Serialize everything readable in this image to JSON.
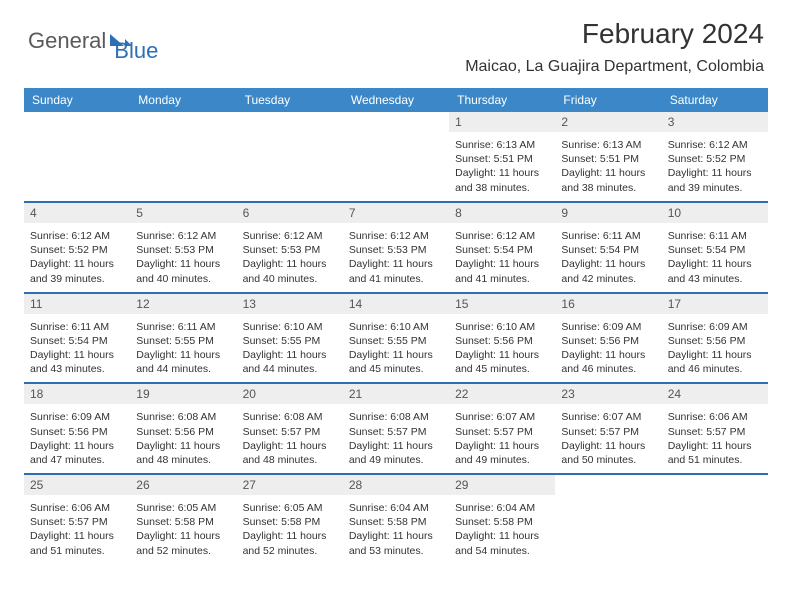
{
  "logo": {
    "general": "General",
    "blue": "Blue"
  },
  "title": "February 2024",
  "location": "Maicao, La Guajira Department, Colombia",
  "columns": [
    "Sunday",
    "Monday",
    "Tuesday",
    "Wednesday",
    "Thursday",
    "Friday",
    "Saturday"
  ],
  "colors": {
    "header_bg": "#3b87c8",
    "border": "#2d6fb5",
    "daynum_bg": "#eeeeee"
  },
  "weeks": [
    [
      null,
      null,
      null,
      null,
      {
        "d": "1",
        "sr": "Sunrise: 6:13 AM",
        "ss": "Sunset: 5:51 PM",
        "dl1": "Daylight: 11 hours",
        "dl2": "and 38 minutes."
      },
      {
        "d": "2",
        "sr": "Sunrise: 6:13 AM",
        "ss": "Sunset: 5:51 PM",
        "dl1": "Daylight: 11 hours",
        "dl2": "and 38 minutes."
      },
      {
        "d": "3",
        "sr": "Sunrise: 6:12 AM",
        "ss": "Sunset: 5:52 PM",
        "dl1": "Daylight: 11 hours",
        "dl2": "and 39 minutes."
      }
    ],
    [
      {
        "d": "4",
        "sr": "Sunrise: 6:12 AM",
        "ss": "Sunset: 5:52 PM",
        "dl1": "Daylight: 11 hours",
        "dl2": "and 39 minutes."
      },
      {
        "d": "5",
        "sr": "Sunrise: 6:12 AM",
        "ss": "Sunset: 5:53 PM",
        "dl1": "Daylight: 11 hours",
        "dl2": "and 40 minutes."
      },
      {
        "d": "6",
        "sr": "Sunrise: 6:12 AM",
        "ss": "Sunset: 5:53 PM",
        "dl1": "Daylight: 11 hours",
        "dl2": "and 40 minutes."
      },
      {
        "d": "7",
        "sr": "Sunrise: 6:12 AM",
        "ss": "Sunset: 5:53 PM",
        "dl1": "Daylight: 11 hours",
        "dl2": "and 41 minutes."
      },
      {
        "d": "8",
        "sr": "Sunrise: 6:12 AM",
        "ss": "Sunset: 5:54 PM",
        "dl1": "Daylight: 11 hours",
        "dl2": "and 41 minutes."
      },
      {
        "d": "9",
        "sr": "Sunrise: 6:11 AM",
        "ss": "Sunset: 5:54 PM",
        "dl1": "Daylight: 11 hours",
        "dl2": "and 42 minutes."
      },
      {
        "d": "10",
        "sr": "Sunrise: 6:11 AM",
        "ss": "Sunset: 5:54 PM",
        "dl1": "Daylight: 11 hours",
        "dl2": "and 43 minutes."
      }
    ],
    [
      {
        "d": "11",
        "sr": "Sunrise: 6:11 AM",
        "ss": "Sunset: 5:54 PM",
        "dl1": "Daylight: 11 hours",
        "dl2": "and 43 minutes."
      },
      {
        "d": "12",
        "sr": "Sunrise: 6:11 AM",
        "ss": "Sunset: 5:55 PM",
        "dl1": "Daylight: 11 hours",
        "dl2": "and 44 minutes."
      },
      {
        "d": "13",
        "sr": "Sunrise: 6:10 AM",
        "ss": "Sunset: 5:55 PM",
        "dl1": "Daylight: 11 hours",
        "dl2": "and 44 minutes."
      },
      {
        "d": "14",
        "sr": "Sunrise: 6:10 AM",
        "ss": "Sunset: 5:55 PM",
        "dl1": "Daylight: 11 hours",
        "dl2": "and 45 minutes."
      },
      {
        "d": "15",
        "sr": "Sunrise: 6:10 AM",
        "ss": "Sunset: 5:56 PM",
        "dl1": "Daylight: 11 hours",
        "dl2": "and 45 minutes."
      },
      {
        "d": "16",
        "sr": "Sunrise: 6:09 AM",
        "ss": "Sunset: 5:56 PM",
        "dl1": "Daylight: 11 hours",
        "dl2": "and 46 minutes."
      },
      {
        "d": "17",
        "sr": "Sunrise: 6:09 AM",
        "ss": "Sunset: 5:56 PM",
        "dl1": "Daylight: 11 hours",
        "dl2": "and 46 minutes."
      }
    ],
    [
      {
        "d": "18",
        "sr": "Sunrise: 6:09 AM",
        "ss": "Sunset: 5:56 PM",
        "dl1": "Daylight: 11 hours",
        "dl2": "and 47 minutes."
      },
      {
        "d": "19",
        "sr": "Sunrise: 6:08 AM",
        "ss": "Sunset: 5:56 PM",
        "dl1": "Daylight: 11 hours",
        "dl2": "and 48 minutes."
      },
      {
        "d": "20",
        "sr": "Sunrise: 6:08 AM",
        "ss": "Sunset: 5:57 PM",
        "dl1": "Daylight: 11 hours",
        "dl2": "and 48 minutes."
      },
      {
        "d": "21",
        "sr": "Sunrise: 6:08 AM",
        "ss": "Sunset: 5:57 PM",
        "dl1": "Daylight: 11 hours",
        "dl2": "and 49 minutes."
      },
      {
        "d": "22",
        "sr": "Sunrise: 6:07 AM",
        "ss": "Sunset: 5:57 PM",
        "dl1": "Daylight: 11 hours",
        "dl2": "and 49 minutes."
      },
      {
        "d": "23",
        "sr": "Sunrise: 6:07 AM",
        "ss": "Sunset: 5:57 PM",
        "dl1": "Daylight: 11 hours",
        "dl2": "and 50 minutes."
      },
      {
        "d": "24",
        "sr": "Sunrise: 6:06 AM",
        "ss": "Sunset: 5:57 PM",
        "dl1": "Daylight: 11 hours",
        "dl2": "and 51 minutes."
      }
    ],
    [
      {
        "d": "25",
        "sr": "Sunrise: 6:06 AM",
        "ss": "Sunset: 5:57 PM",
        "dl1": "Daylight: 11 hours",
        "dl2": "and 51 minutes."
      },
      {
        "d": "26",
        "sr": "Sunrise: 6:05 AM",
        "ss": "Sunset: 5:58 PM",
        "dl1": "Daylight: 11 hours",
        "dl2": "and 52 minutes."
      },
      {
        "d": "27",
        "sr": "Sunrise: 6:05 AM",
        "ss": "Sunset: 5:58 PM",
        "dl1": "Daylight: 11 hours",
        "dl2": "and 52 minutes."
      },
      {
        "d": "28",
        "sr": "Sunrise: 6:04 AM",
        "ss": "Sunset: 5:58 PM",
        "dl1": "Daylight: 11 hours",
        "dl2": "and 53 minutes."
      },
      {
        "d": "29",
        "sr": "Sunrise: 6:04 AM",
        "ss": "Sunset: 5:58 PM",
        "dl1": "Daylight: 11 hours",
        "dl2": "and 54 minutes."
      },
      null,
      null
    ]
  ]
}
